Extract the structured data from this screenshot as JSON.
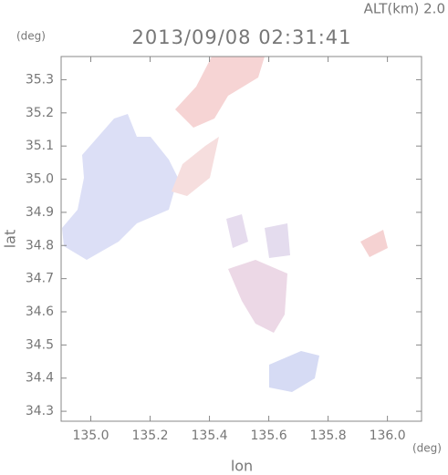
{
  "chart_data": {
    "type": "map",
    "title": "2013/09/08 02:31:41",
    "annotation": "ALT(km) 2.0",
    "x_label": "lon",
    "y_label": "lat",
    "x_unit": "(deg)",
    "y_unit": "(deg)",
    "xlim": [
      134.9,
      136.115
    ],
    "ylim": [
      34.27,
      35.37
    ],
    "xticks": [
      {
        "value": 135,
        "label": "135.0"
      },
      135.2,
      135.4,
      135.6,
      135.8,
      {
        "value": 136,
        "label": "136.0"
      }
    ],
    "yticks": [
      34.3,
      34.4,
      34.5,
      34.6,
      34.7,
      34.8,
      34.9,
      {
        "value": 35,
        "label": "35.0"
      },
      35.1,
      35.2,
      35.3
    ]
  }
}
